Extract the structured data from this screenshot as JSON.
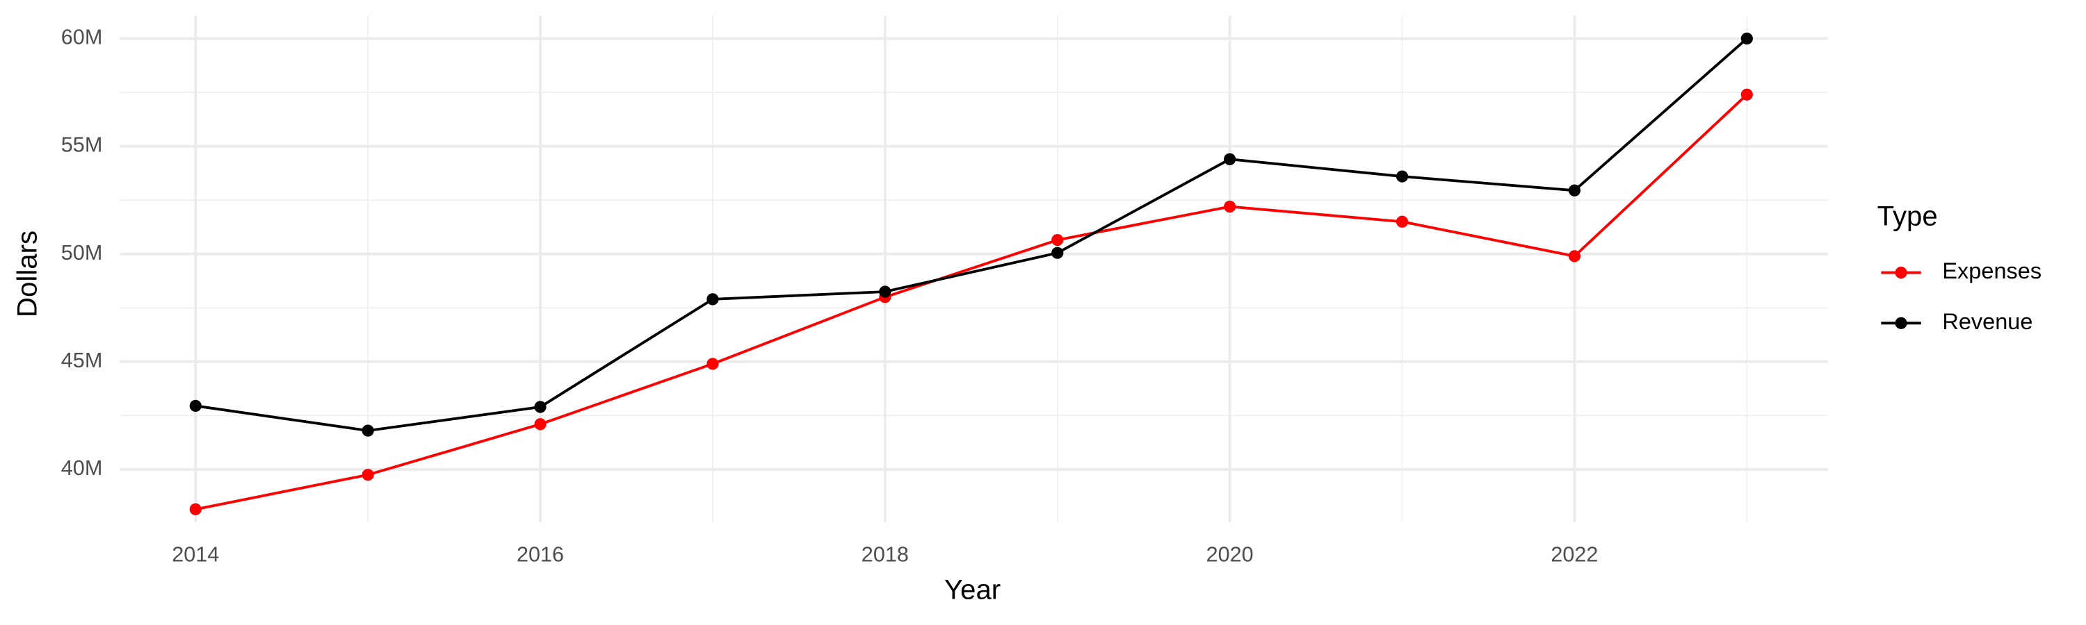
{
  "chart_data": {
    "type": "line",
    "x_label": "Year",
    "y_label": "Dollars",
    "legend_title": "Type",
    "legend_position": "right",
    "grid": true,
    "x": [
      2014,
      2015,
      2016,
      2017,
      2018,
      2019,
      2020,
      2021,
      2022,
      2023
    ],
    "series": [
      {
        "name": "Expenses",
        "color": "#ff0000",
        "values": [
          38150000,
          39750000,
          42100000,
          44900000,
          48000000,
          50650000,
          52200000,
          51500000,
          49900000,
          57400000
        ]
      },
      {
        "name": "Revenue",
        "color": "#000000",
        "values": [
          42950000,
          41800000,
          42900000,
          47900000,
          48250000,
          50050000,
          54400000,
          53600000,
          52950000,
          60000000
        ]
      }
    ],
    "xlim": [
      2013.56,
      2023.47
    ],
    "xticks": [
      2014,
      2016,
      2018,
      2020,
      2022
    ],
    "ylim": [
      37530000,
      61050000
    ],
    "yticks": [
      {
        "value": 40000000,
        "label": "40M"
      },
      {
        "value": 45000000,
        "label": "45M"
      },
      {
        "value": 50000000,
        "label": "50M"
      },
      {
        "value": 55000000,
        "label": "55M"
      },
      {
        "value": 60000000,
        "label": "60M"
      }
    ]
  }
}
